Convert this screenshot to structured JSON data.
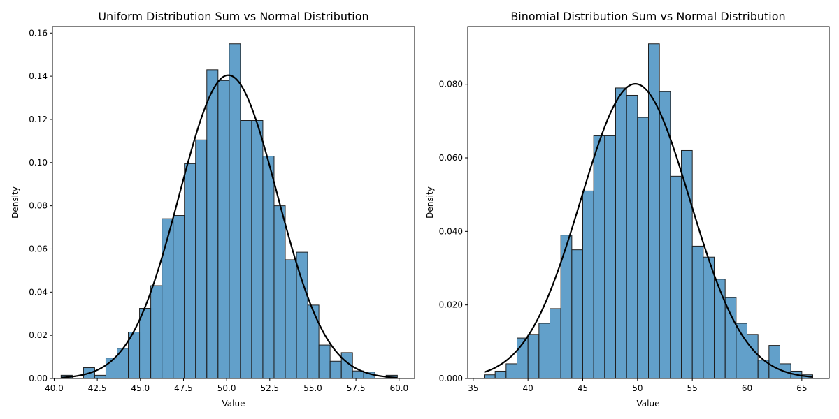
{
  "chart_data": [
    {
      "type": "histogram",
      "title": "Uniform Distribution Sum vs Normal Distribution",
      "xlabel": "Value",
      "ylabel": "Density",
      "xlim": [
        39.9,
        60.9
      ],
      "ylim": [
        0,
        0.163
      ],
      "x_ticks": [
        40.0,
        42.5,
        45.0,
        47.5,
        50.0,
        52.5,
        55.0,
        57.5,
        60.0
      ],
      "x_tick_labels": [
        "40.0",
        "42.5",
        "45.0",
        "47.5",
        "50.0",
        "52.5",
        "55.0",
        "57.5",
        "60.0"
      ],
      "y_ticks": [
        0,
        0.02,
        0.04,
        0.06,
        0.08,
        0.1,
        0.12,
        0.14,
        0.16
      ],
      "y_tick_labels": [
        "0.00",
        "0.02",
        "0.04",
        "0.06",
        "0.08",
        "0.10",
        "0.12",
        "0.14",
        "0.16"
      ],
      "bin_start": 40.4,
      "bin_width": 0.65,
      "values": [
        0.0015,
        0.0,
        0.005,
        0.0015,
        0.0095,
        0.014,
        0.0215,
        0.0325,
        0.043,
        0.074,
        0.0755,
        0.0995,
        0.1105,
        0.143,
        0.138,
        0.155,
        0.1195,
        0.1195,
        0.103,
        0.08,
        0.055,
        0.0585,
        0.034,
        0.0155,
        0.008,
        0.012,
        0.0035,
        0.003,
        0.0,
        0.0015
      ],
      "bar_color": "#1f77b4",
      "normal_curve": {
        "mean": 50.1,
        "std": 2.84,
        "color": "#000000"
      },
      "grid": false,
      "legend": false
    },
    {
      "type": "histogram",
      "title": "Binomial Distribution Sum vs Normal Distribution",
      "xlabel": "Value",
      "ylabel": "Density",
      "xlim": [
        34.5,
        67.5
      ],
      "ylim": [
        0,
        0.0957
      ],
      "x_ticks": [
        35,
        40,
        45,
        50,
        55,
        60,
        65
      ],
      "x_tick_labels": [
        "35",
        "40",
        "45",
        "50",
        "55",
        "60",
        "65"
      ],
      "y_ticks": [
        0,
        0.02,
        0.04,
        0.06,
        0.08
      ],
      "y_tick_labels": [
        "0.000",
        "0.020",
        "0.040",
        "0.060",
        "0.080"
      ],
      "bin_start": 36.0,
      "bin_width": 1.0,
      "values": [
        0.001,
        0.002,
        0.004,
        0.011,
        0.012,
        0.015,
        0.019,
        0.039,
        0.035,
        0.051,
        0.066,
        0.066,
        0.079,
        0.077,
        0.071,
        0.091,
        0.078,
        0.055,
        0.062,
        0.036,
        0.033,
        0.027,
        0.022,
        0.015,
        0.012,
        0.005,
        0.009,
        0.004,
        0.002,
        0.001
      ],
      "bar_color": "#1f77b4",
      "normal_curve": {
        "mean": 49.8,
        "std": 4.98,
        "color": "#000000"
      },
      "grid": false,
      "legend": false
    }
  ]
}
